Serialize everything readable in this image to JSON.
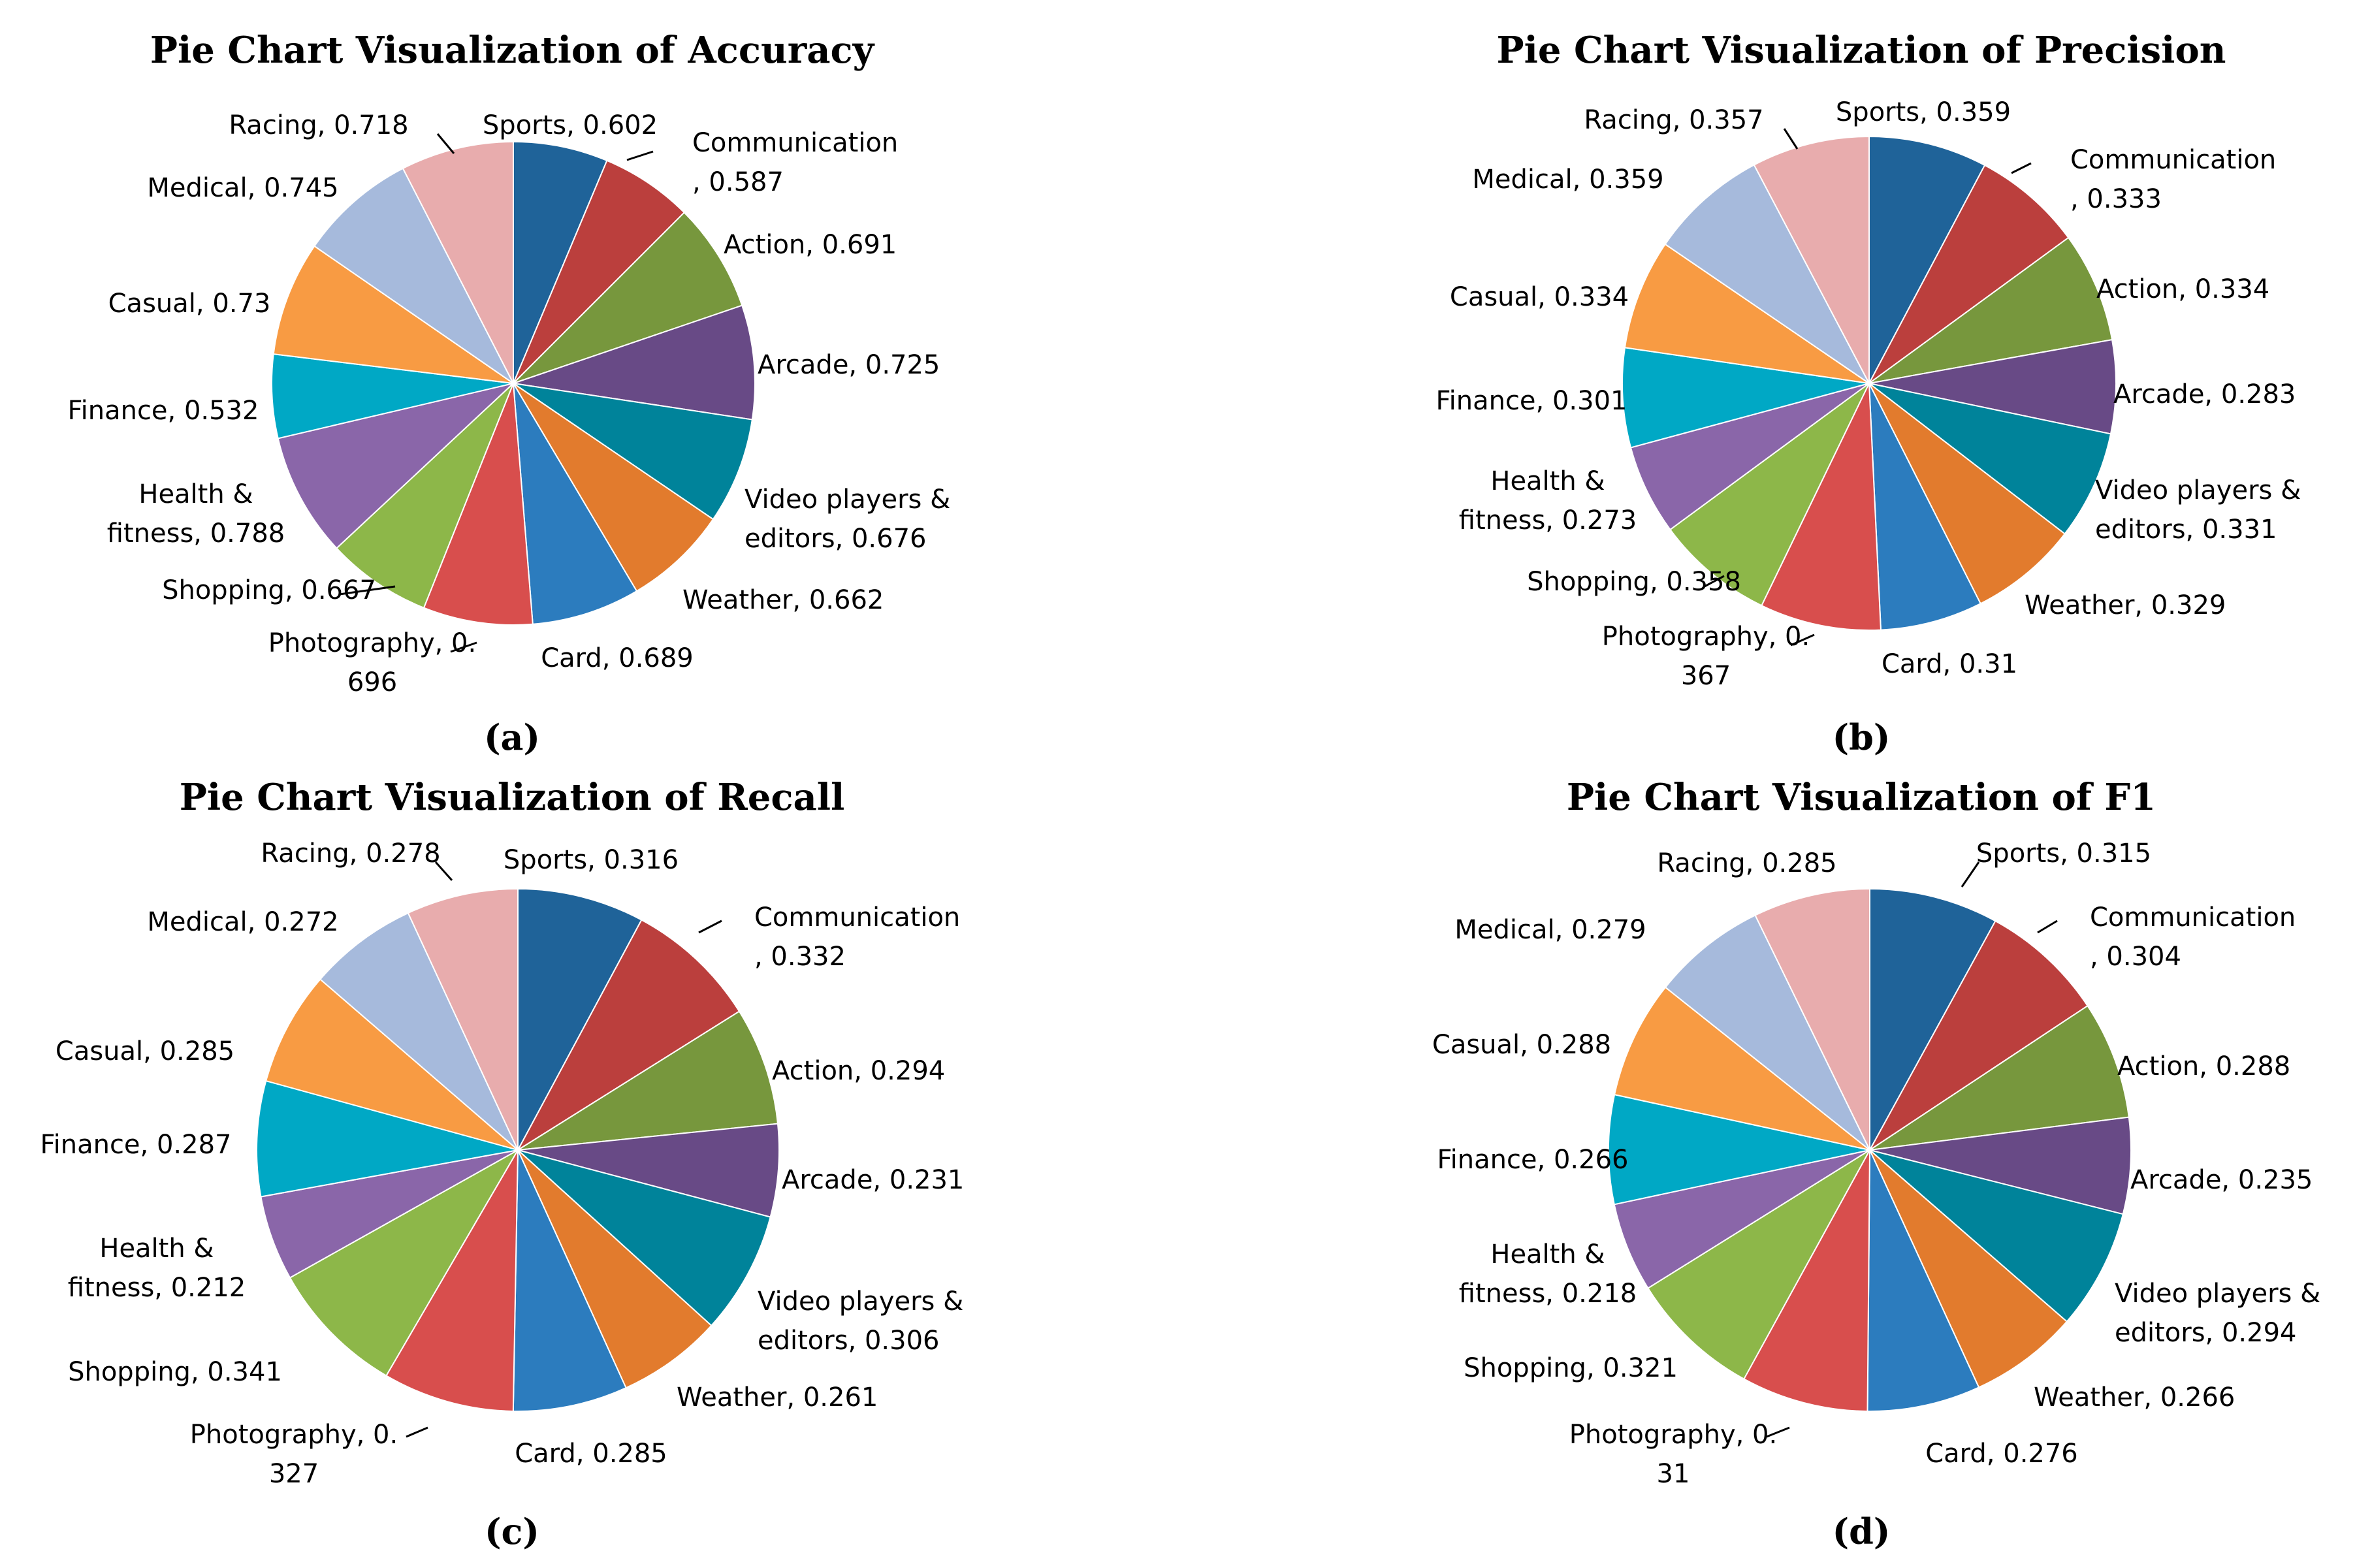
{
  "figure": {
    "colors": [
      "#1F6399",
      "#BB3F3D",
      "#77973D",
      "#684A86",
      "#00839A",
      "#E27B2D",
      "#2C7CBE",
      "#D84E4D",
      "#8DB749",
      "#8A66A9",
      "#00A8C5",
      "#F89B43",
      "#A6BADC",
      "#E8ACAD"
    ],
    "chart_data": [
      {
        "type": "pie",
        "title": "Pie Chart Visualization of Accuracy",
        "panel_label": "(a)",
        "categories": [
          "Sports",
          "Communication",
          "Action",
          "Arcade",
          "Video players & editors",
          "Weather",
          "Card",
          "Photography",
          "Shopping",
          "Health & fitness",
          "Finance",
          "Casual",
          "Medical",
          "Racing"
        ],
        "values": [
          0.602,
          0.587,
          0.691,
          0.725,
          0.676,
          0.662,
          0.689,
          0.696,
          0.667,
          0.788,
          0.532,
          0.73,
          0.745,
          0.718
        ],
        "labels": [
          [
            "Sports, 0.602"
          ],
          [
            "Communication",
            ", 0.587"
          ],
          [
            "Action, 0.691"
          ],
          [
            "Arcade, 0.725"
          ],
          [
            "Video players &",
            "editors, 0.676"
          ],
          [
            "Weather, 0.662"
          ],
          [
            "Card, 0.689"
          ],
          [
            "Photography, 0.",
            "696"
          ],
          [
            "Shopping, 0.667"
          ],
          [
            "Health &",
            "fitness, 0.788"
          ],
          [
            "Finance, 0.532"
          ],
          [
            "Casual, 0.73"
          ],
          [
            "Medical, 0.745"
          ],
          [
            "Racing, 0.718"
          ]
        ]
      },
      {
        "type": "pie",
        "title": "Pie Chart Visualization of Precision",
        "panel_label": "(b)",
        "categories": [
          "Sports",
          "Communication",
          "Action",
          "Arcade",
          "Video players & editors",
          "Weather",
          "Card",
          "Photography",
          "Shopping",
          "Health & fitness",
          "Finance",
          "Casual",
          "Medical",
          "Racing"
        ],
        "values": [
          0.359,
          0.333,
          0.334,
          0.283,
          0.331,
          0.329,
          0.31,
          0.367,
          0.358,
          0.273,
          0.301,
          0.334,
          0.359,
          0.357
        ],
        "labels": [
          [
            "Sports, 0.359"
          ],
          [
            "Communication",
            ", 0.333"
          ],
          [
            "Action, 0.334"
          ],
          [
            "Arcade, 0.283"
          ],
          [
            "Video players &",
            "editors, 0.331"
          ],
          [
            "Weather, 0.329"
          ],
          [
            "Card, 0.31"
          ],
          [
            "Photography, 0.",
            "367"
          ],
          [
            "Shopping, 0.358"
          ],
          [
            "Health &",
            "fitness, 0.273"
          ],
          [
            "Finance, 0.301"
          ],
          [
            "Casual, 0.334"
          ],
          [
            "Medical, 0.359"
          ],
          [
            "Racing, 0.357"
          ]
        ]
      },
      {
        "type": "pie",
        "title": "Pie Chart Visualization of Recall",
        "panel_label": "(c)",
        "categories": [
          "Sports",
          "Communication",
          "Action",
          "Arcade",
          "Video players & editors",
          "Weather",
          "Card",
          "Photography",
          "Shopping",
          "Health & fitness",
          "Finance",
          "Casual",
          "Medical",
          "Racing"
        ],
        "values": [
          0.316,
          0.332,
          0.294,
          0.231,
          0.306,
          0.261,
          0.285,
          0.327,
          0.341,
          0.212,
          0.287,
          0.285,
          0.272,
          0.278
        ],
        "labels": [
          [
            "Sports, 0.316"
          ],
          [
            "Communication",
            ", 0.332"
          ],
          [
            "Action, 0.294"
          ],
          [
            "Arcade, 0.231"
          ],
          [
            "Video players &",
            "editors, 0.306"
          ],
          [
            "Weather, 0.261"
          ],
          [
            "Card, 0.285"
          ],
          [
            "Photography, 0.",
            "327"
          ],
          [
            "Shopping, 0.341"
          ],
          [
            "Health &",
            "fitness, 0.212"
          ],
          [
            "Finance, 0.287"
          ],
          [
            "Casual, 0.285"
          ],
          [
            "Medical, 0.272"
          ],
          [
            "Racing, 0.278"
          ]
        ]
      },
      {
        "type": "pie",
        "title": "Pie Chart Visualization of F1",
        "panel_label": "(d)",
        "categories": [
          "Sports",
          "Communication",
          "Action",
          "Arcade",
          "Video players & editors",
          "Weather",
          "Card",
          "Photography",
          "Shopping",
          "Health & fitness",
          "Finance",
          "Casual",
          "Medical",
          "Racing"
        ],
        "values": [
          0.315,
          0.304,
          0.288,
          0.235,
          0.294,
          0.266,
          0.276,
          0.31,
          0.321,
          0.218,
          0.266,
          0.288,
          0.279,
          0.285
        ],
        "labels": [
          [
            "Sports, 0.315"
          ],
          [
            "Communication",
            ", 0.304"
          ],
          [
            "Action, 0.288"
          ],
          [
            "Arcade, 0.235"
          ],
          [
            "Video players &",
            "editors, 0.294"
          ],
          [
            "Weather, 0.266"
          ],
          [
            "Card, 0.276"
          ],
          [
            "Photography, 0.",
            "31"
          ],
          [
            "Shopping, 0.321"
          ],
          [
            "Health &",
            "fitness, 0.218"
          ],
          [
            "Finance, 0.266"
          ],
          [
            "Casual, 0.288"
          ],
          [
            "Medical, 0.279"
          ],
          [
            "Racing, 0.285"
          ]
        ]
      }
    ]
  }
}
